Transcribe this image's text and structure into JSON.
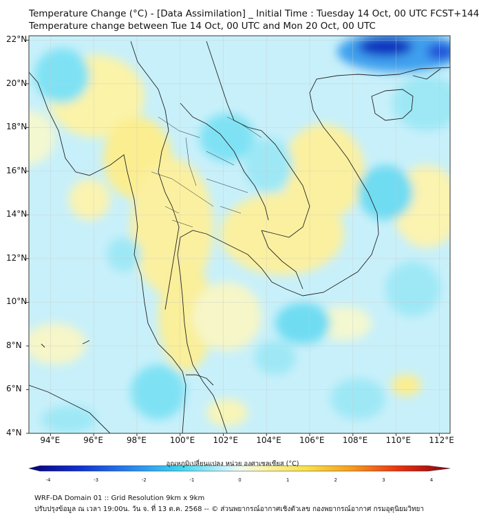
{
  "header": {
    "title_line1": "Temperature Change (°C) - [Data Assimilation] _ Initial Time : Tuesday 14 Oct, 00 UTC FCST+144",
    "title_line2": "Temperature change between Tue 14 Oct, 00 UTC and Mon 20 Oct, 00 UTC"
  },
  "map": {
    "lon_range": [
      93,
      112.5
    ],
    "lat_range": [
      4,
      22.2
    ],
    "lat_labels": [
      "22°N",
      "20°N",
      "18°N",
      "16°N",
      "14°N",
      "12°N",
      "10°N",
      "8°N",
      "6°N",
      "4°N"
    ],
    "lat_values": [
      22,
      20,
      18,
      16,
      14,
      12,
      10,
      8,
      6,
      4
    ],
    "lon_labels": [
      "94°E",
      "96°E",
      "98°E",
      "100°E",
      "102°E",
      "104°E",
      "106°E",
      "108°E",
      "110°E",
      "112°E"
    ],
    "lon_values": [
      94,
      96,
      98,
      100,
      102,
      104,
      106,
      108,
      110,
      112
    ],
    "background_color": "#c8f0fa",
    "warm_color": "#fbf3a0",
    "cold_color": "#3fd6f0",
    "deep_cold_color": "#1030c0"
  },
  "colorbar": {
    "title": "อุณหภูมิเปลี่ยนแปลง หน่วย องศาเซลเซียส (°C)",
    "tick_labels": [
      "-4",
      "-3",
      "-2",
      "-1",
      "0",
      "1",
      "2",
      "3",
      "4"
    ],
    "tick_values": [
      -4,
      -3,
      -2,
      -1,
      0,
      1,
      2,
      3,
      4
    ],
    "range": [
      -4,
      4
    ]
  },
  "footer": {
    "line1": "WRF-DA Domain 01 :: Grid Resolution 9km x 9km",
    "line2": "ปรับปรุงข้อมูล ณ เวลา 19:00น. วัน จ. ที่ 13 ต.ค. 2568 -- © ส่วนพยากรณ์อากาศเชิงตัวเลข กองพยากรณ์อากาศ กรมอุตุนิยมวิทยา"
  }
}
